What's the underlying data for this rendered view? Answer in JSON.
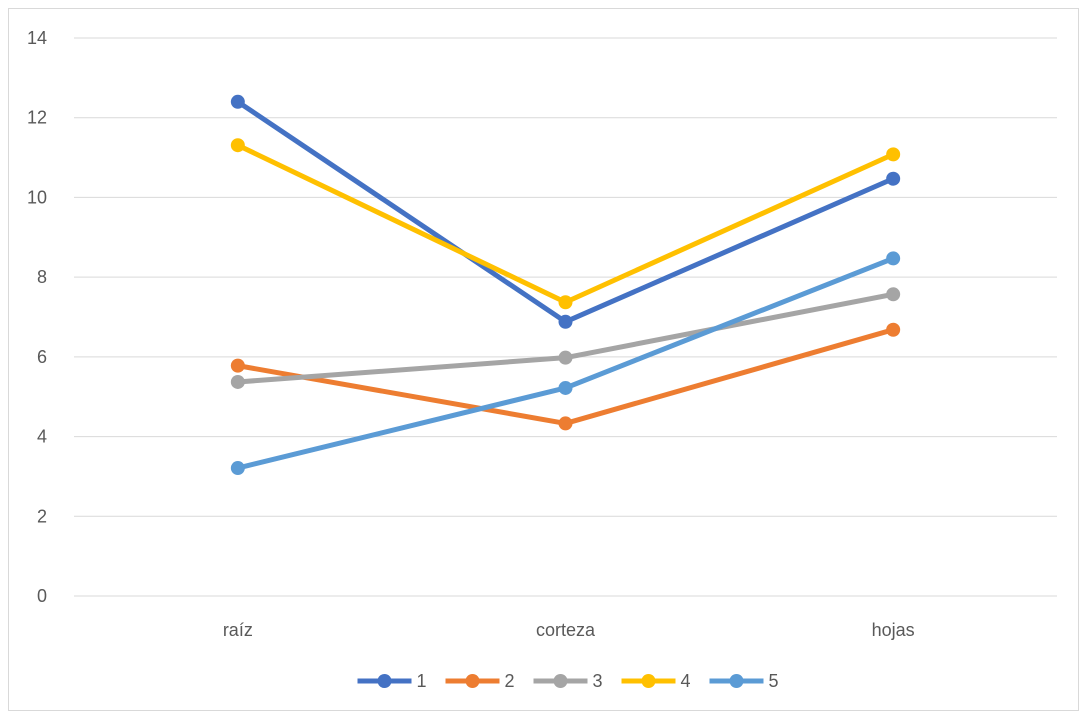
{
  "chart_data": {
    "type": "line",
    "title": "",
    "xlabel": "",
    "ylabel": "",
    "categories": [
      "raíz",
      "corteza",
      "hojas"
    ],
    "ylim": [
      0,
      14
    ],
    "yticks": [
      0,
      2,
      4,
      6,
      8,
      10,
      12,
      14
    ],
    "grid": true,
    "legend_position": "bottom",
    "series": [
      {
        "name": "1",
        "color": "#4472c4",
        "values": [
          12.4,
          6.88,
          10.47
        ]
      },
      {
        "name": "2",
        "color": "#ed7d31",
        "values": [
          5.78,
          4.33,
          6.68
        ]
      },
      {
        "name": "3",
        "color": "#a5a5a5",
        "values": [
          5.37,
          5.98,
          7.57
        ]
      },
      {
        "name": "4",
        "color": "#ffc000",
        "values": [
          11.31,
          7.37,
          11.08
        ]
      },
      {
        "name": "5",
        "color": "#5b9bd5",
        "values": [
          3.21,
          5.22,
          8.47
        ]
      }
    ]
  }
}
